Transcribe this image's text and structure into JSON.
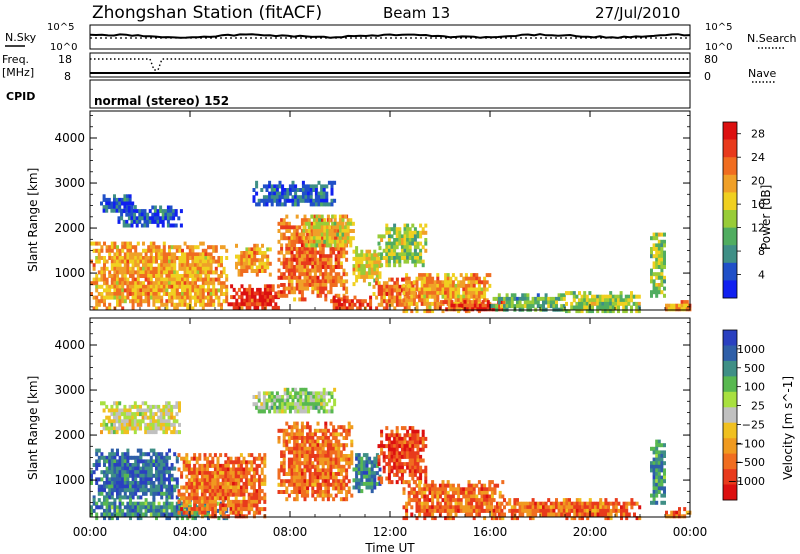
{
  "header": {
    "station": "Zhongshan Station (fitACF)",
    "beam": "Beam 13",
    "date": "27/Jul/2010"
  },
  "noise_panel": {
    "left_label": "N.Sky",
    "right_label": "N.Search",
    "left_ticks": [
      "10^5",
      "10^0"
    ],
    "right_ticks": [
      "10^5",
      "10^0"
    ]
  },
  "freq_panel": {
    "left_label_1": "Freq.",
    "left_label_2": "[MHz]",
    "right_label": "Nave",
    "left_ticks": [
      "18",
      "8"
    ],
    "right_ticks": [
      "80",
      "0"
    ]
  },
  "cpid_panel": {
    "label": "CPID",
    "mode_text": "normal (stereo) 152"
  },
  "time_axis": {
    "title": "Time UT",
    "ticks": [
      "00:00",
      "04:00",
      "08:00",
      "12:00",
      "16:00",
      "20:00",
      "00:00"
    ]
  },
  "chart_data": [
    {
      "type": "heatmap",
      "title": "",
      "xlabel": "Time UT",
      "ylabel": "Slant Range [km]",
      "ylim": [
        180,
        4600
      ],
      "yticks": [
        "1000",
        "2000",
        "3000",
        "4000"
      ],
      "xlim_hours": [
        0,
        24
      ],
      "colorbar": {
        "label": "Power [dB]",
        "ticks": [
          "4",
          "8",
          "12",
          "16",
          "20",
          "24",
          "28"
        ],
        "range": [
          0,
          30
        ],
        "colors": [
          "#1020f0",
          "#2050c8",
          "#3f8f86",
          "#50ad60",
          "#98cc38",
          "#f0d020",
          "#f0a028",
          "#f06d20",
          "#e83a1c",
          "#dc1010"
        ]
      },
      "regions": [
        {
          "t0": 0.4,
          "t1": 1.8,
          "r0": 2400,
          "r1": 2750,
          "level": 1
        },
        {
          "t0": 1.1,
          "t1": 3.6,
          "r0": 2050,
          "r1": 2500,
          "level": 1
        },
        {
          "t0": 0.0,
          "t1": 5.5,
          "r0": 250,
          "r1": 1700,
          "level": 6
        },
        {
          "t0": 5.8,
          "t1": 7.2,
          "r0": 1000,
          "r1": 1650,
          "level": 6
        },
        {
          "t0": 5.5,
          "t1": 7.5,
          "r0": 200,
          "r1": 750,
          "level": 8
        },
        {
          "t0": 6.5,
          "t1": 9.8,
          "r0": 2500,
          "r1": 3050,
          "level": 1
        },
        {
          "t0": 7.5,
          "t1": 10.3,
          "r0": 400,
          "r1": 2300,
          "level": 7
        },
        {
          "t0": 8.5,
          "t1": 10.5,
          "r0": 1600,
          "r1": 2300,
          "level": 5
        },
        {
          "t0": 10.5,
          "t1": 11.6,
          "r0": 800,
          "r1": 1600,
          "level": 5
        },
        {
          "t0": 9.5,
          "t1": 11.2,
          "r0": 200,
          "r1": 500,
          "level": 8
        },
        {
          "t0": 11.5,
          "t1": 13.4,
          "r0": 1200,
          "r1": 2100,
          "level": 4
        },
        {
          "t0": 11.3,
          "t1": 13.0,
          "r0": 200,
          "r1": 900,
          "level": 7
        },
        {
          "t0": 12.5,
          "t1": 16.0,
          "r0": 200,
          "r1": 1000,
          "level": 6
        },
        {
          "t0": 14.0,
          "t1": 16.5,
          "r0": 200,
          "r1": 400,
          "level": 8
        },
        {
          "t0": 16.0,
          "t1": 19.0,
          "r0": 200,
          "r1": 550,
          "level": 3
        },
        {
          "t0": 19.0,
          "t1": 22.0,
          "r0": 200,
          "r1": 600,
          "level": 4
        },
        {
          "t0": 22.4,
          "t1": 23.0,
          "r0": 500,
          "r1": 1900,
          "level": 4
        },
        {
          "t0": 23.0,
          "t1": 24.0,
          "r0": 200,
          "r1": 400,
          "level": 6
        }
      ]
    },
    {
      "type": "heatmap",
      "title": "",
      "xlabel": "Time UT",
      "ylabel": "Slant Range [km]",
      "ylim": [
        180,
        4600
      ],
      "yticks": [
        "1000",
        "2000",
        "3000",
        "4000"
      ],
      "xlim_hours": [
        0,
        24
      ],
      "colorbar": {
        "label": "Velocity [m s^-1]",
        "ticks": [
          "1000",
          "500",
          "100",
          "25",
          "-25",
          "-100",
          "-500",
          "-1000"
        ],
        "colors": [
          "#2a40c0",
          "#2f5fa8",
          "#3f8f86",
          "#58b850",
          "#a8e040",
          "#c0c0c0",
          "#f0c020",
          "#f09a20",
          "#f06d20",
          "#e83a1c",
          "#dc1010"
        ]
      },
      "regions": [
        {
          "t0": 0.4,
          "t1": 3.6,
          "r0": 2050,
          "r1": 2750,
          "level": 5
        },
        {
          "t0": 0.0,
          "t1": 3.5,
          "r0": 600,
          "r1": 1700,
          "level": 1
        },
        {
          "t0": 0.0,
          "t1": 5.5,
          "r0": 200,
          "r1": 600,
          "level": 2
        },
        {
          "t0": 3.5,
          "t1": 7.0,
          "r0": 200,
          "r1": 1600,
          "level": 8
        },
        {
          "t0": 6.5,
          "t1": 9.8,
          "r0": 2500,
          "r1": 3050,
          "level": 4
        },
        {
          "t0": 7.5,
          "t1": 10.5,
          "r0": 600,
          "r1": 2300,
          "level": 8
        },
        {
          "t0": 10.5,
          "t1": 11.6,
          "r0": 800,
          "r1": 1600,
          "level": 2
        },
        {
          "t0": 11.5,
          "t1": 13.4,
          "r0": 1000,
          "r1": 2200,
          "level": 9
        },
        {
          "t0": 12.5,
          "t1": 16.5,
          "r0": 200,
          "r1": 1000,
          "level": 8
        },
        {
          "t0": 16.0,
          "t1": 22.0,
          "r0": 200,
          "r1": 600,
          "level": 8
        },
        {
          "t0": 22.4,
          "t1": 23.0,
          "r0": 500,
          "r1": 1900,
          "level": 2
        },
        {
          "t0": 23.0,
          "t1": 24.0,
          "r0": 200,
          "r1": 400,
          "level": 8
        }
      ]
    }
  ]
}
